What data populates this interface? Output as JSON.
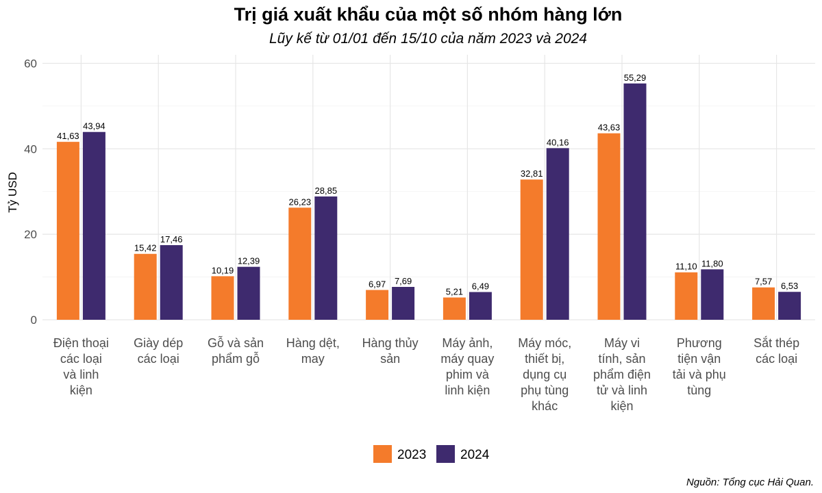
{
  "chart_data": {
    "type": "bar",
    "title": "Trị giá xuất khẩu của một số nhóm hàng lớn",
    "subtitle": "Lũy kế từ 01/01 đến 15/10 của năm 2023 và 2024",
    "ylabel": "Tỷ USD",
    "ylim": [
      0,
      60
    ],
    "yticks": [
      "0",
      "20",
      "40",
      "60"
    ],
    "categories": [
      [
        "Điện thoại",
        "các loại",
        "và linh",
        "kiện"
      ],
      [
        "Giày dép",
        "các loại"
      ],
      [
        "Gỗ và sản",
        "phẩm gỗ"
      ],
      [
        "Hàng dệt,",
        "may"
      ],
      [
        "Hàng thủy",
        "sản"
      ],
      [
        "Máy ảnh,",
        "máy quay",
        "phim và",
        "linh kiện"
      ],
      [
        "Máy móc,",
        "thiết bị,",
        "dụng cụ",
        "phụ tùng",
        "khác"
      ],
      [
        "Máy vi",
        "tính, sản",
        "phẩm điện",
        "tử và linh",
        "kiện"
      ],
      [
        "Phương",
        "tiện vận",
        "tải và phụ",
        "tùng"
      ],
      [
        "Sắt thép",
        "các loại"
      ]
    ],
    "series": [
      {
        "name": "2023",
        "color": "#F47B2B",
        "values": [
          41.63,
          15.42,
          10.19,
          26.23,
          6.97,
          5.21,
          32.81,
          43.63,
          11.1,
          7.57
        ],
        "labels": [
          "41,63",
          "15,42",
          "10,19",
          "26,23",
          "6,97",
          "5,21",
          "32,81",
          "43,63",
          "11,10",
          "7,57"
        ]
      },
      {
        "name": "2024",
        "color": "#3E2A6E",
        "values": [
          43.94,
          17.46,
          12.39,
          28.85,
          7.69,
          6.49,
          40.16,
          55.29,
          11.8,
          6.53
        ],
        "labels": [
          "43,94",
          "17,46",
          "12,39",
          "28,85",
          "7,69",
          "6,49",
          "40,16",
          "55,29",
          "11,80",
          "6,53"
        ]
      }
    ],
    "grid": true,
    "legend": "bottom",
    "source": "Nguồn: Tổng cục Hải Quan."
  }
}
